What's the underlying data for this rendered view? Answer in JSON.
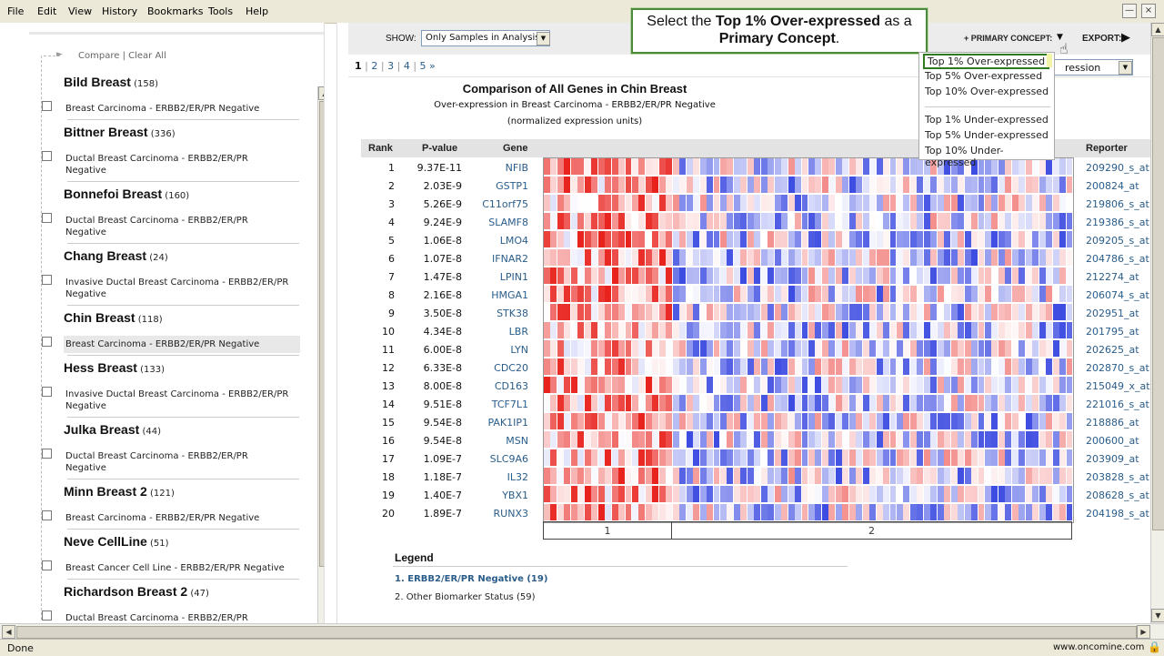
{
  "menu": [
    "File",
    "Edit",
    "View",
    "History",
    "Bookmarks",
    "Tools",
    "Help"
  ],
  "window_controls": [
    "—",
    "×"
  ],
  "left": {
    "compare": "Compare",
    "divider": "|",
    "clear_all": "Clear All",
    "datasets": [
      {
        "name": "Bild Breast",
        "count": "(158)",
        "desc": [
          "Breast Carcinoma - ERBB2/ER/PR Negative"
        ]
      },
      {
        "name": "Bittner Breast",
        "count": "(336)",
        "desc": [
          "Ductal Breast Carcinoma - ERBB2/ER/PR",
          "Negative"
        ]
      },
      {
        "name": "Bonnefoi Breast",
        "count": "(160)",
        "desc": [
          "Ductal Breast Carcinoma - ERBB2/ER/PR",
          "Negative"
        ]
      },
      {
        "name": "Chang Breast",
        "count": "(24)",
        "desc": [
          "Invasive Ductal Breast Carcinoma - ERBB2/ER/PR",
          "Negative"
        ]
      },
      {
        "name": "Chin Breast",
        "count": "(118)",
        "desc": [
          "Breast Carcinoma - ERBB2/ER/PR Negative"
        ]
      },
      {
        "name": "Hess Breast",
        "count": "(133)",
        "desc": [
          "Invasive Ductal Breast Carcinoma - ERBB2/ER/PR",
          "Negative"
        ]
      },
      {
        "name": "Julka Breast",
        "count": "(44)",
        "desc": [
          "Ductal Breast Carcinoma - ERBB2/ER/PR",
          "Negative"
        ]
      },
      {
        "name": "Minn Breast 2",
        "count": "(121)",
        "desc": [
          "Breast Carcinoma - ERBB2/ER/PR Negative"
        ]
      },
      {
        "name": "Neve CellLine",
        "count": "(51)",
        "desc": [
          "Breast Cancer Cell Line - ERBB2/ER/PR Negative"
        ]
      },
      {
        "name": "Richardson Breast 2",
        "count": "(47)",
        "desc": [
          "Ductal Breast Carcinoma - ERBB2/ER/PR"
        ]
      }
    ]
  },
  "toolbar": {
    "show_label": "SHOW:",
    "show_value": "Only Samples in Analysis",
    "primary_concept": "+ PRIMARY CONCEPT:",
    "export": "EXPORT:",
    "hidden_select_value": "ression"
  },
  "pagination": [
    "1",
    "2",
    "3",
    "4",
    "5 »"
  ],
  "pagination_sep": "|",
  "analysis": {
    "title": "Comparison of All Genes in Chin Breast",
    "subtitle": "Over-expression in Breast Carcinoma - ERBB2/ER/PR Negative",
    "units": "(normalized expression units)"
  },
  "table": {
    "headers": {
      "rank": "Rank",
      "pvalue": "P-value",
      "gene": "Gene",
      "reporter": "Reporter"
    },
    "rows": [
      {
        "rank": "1",
        "p": "9.37E-11",
        "gene": "NFIB",
        "reporter": "209290_s_at"
      },
      {
        "rank": "2",
        "p": "2.03E-9",
        "gene": "GSTP1",
        "reporter": "200824_at"
      },
      {
        "rank": "3",
        "p": "5.26E-9",
        "gene": "C11orf75",
        "reporter": "219806_s_at"
      },
      {
        "rank": "4",
        "p": "9.24E-9",
        "gene": "SLAMF8",
        "reporter": "219386_s_at"
      },
      {
        "rank": "5",
        "p": "1.06E-8",
        "gene": "LMO4",
        "reporter": "209205_s_at"
      },
      {
        "rank": "6",
        "p": "1.07E-8",
        "gene": "IFNAR2",
        "reporter": "204786_s_at"
      },
      {
        "rank": "7",
        "p": "1.47E-8",
        "gene": "LPIN1",
        "reporter": "212274_at"
      },
      {
        "rank": "8",
        "p": "2.16E-8",
        "gene": "HMGA1",
        "reporter": "206074_s_at"
      },
      {
        "rank": "9",
        "p": "3.50E-8",
        "gene": "STK38",
        "reporter": "202951_at"
      },
      {
        "rank": "10",
        "p": "4.34E-8",
        "gene": "LBR",
        "reporter": "201795_at"
      },
      {
        "rank": "11",
        "p": "6.00E-8",
        "gene": "LYN",
        "reporter": "202625_at"
      },
      {
        "rank": "12",
        "p": "6.33E-8",
        "gene": "CDC20",
        "reporter": "202870_s_at"
      },
      {
        "rank": "13",
        "p": "8.00E-8",
        "gene": "CD163",
        "reporter": "215049_x_at"
      },
      {
        "rank": "14",
        "p": "9.51E-8",
        "gene": "TCF7L1",
        "reporter": "221016_s_at"
      },
      {
        "rank": "15",
        "p": "9.54E-8",
        "gene": "PAK1IP1",
        "reporter": "218886_at"
      },
      {
        "rank": "16",
        "p": "9.54E-8",
        "gene": "MSN",
        "reporter": "200600_at"
      },
      {
        "rank": "17",
        "p": "1.09E-7",
        "gene": "SLC9A6",
        "reporter": "203909_at"
      },
      {
        "rank": "18",
        "p": "1.18E-7",
        "gene": "IL32",
        "reporter": "203828_s_at"
      },
      {
        "rank": "19",
        "p": "1.40E-7",
        "gene": "YBX1",
        "reporter": "208628_s_at"
      },
      {
        "rank": "20",
        "p": "1.89E-7",
        "gene": "RUNX3",
        "reporter": "204198_s_at"
      }
    ],
    "groups": [
      "1",
      "2"
    ],
    "group_sample_counts": [
      19,
      59
    ]
  },
  "legend": {
    "title": "Legend",
    "items": [
      "1. ERBB2/ER/PR Negative (19)",
      "2. Other Biomarker Status (59)"
    ]
  },
  "tooltip": {
    "pre": "Select the ",
    "bold1": "Top 1% Over-expressed",
    "mid": " as a",
    "bold2": "Primary Concept",
    "post": "."
  },
  "dropdown": {
    "options": [
      "Top 1% Over-expressed",
      "Top 5% Over-expressed",
      "Top 10% Over-expressed",
      "Top 1% Under-expressed",
      "Top 5% Under-expressed",
      "Top 10% Under-expressed"
    ],
    "selected": "Top 1% Over-expressed"
  },
  "status": {
    "left": "Done",
    "right": "www.oncomine.com"
  },
  "colors": {
    "over": "#e8231e",
    "under": "#2233dd",
    "link": "#2a5d8a",
    "tooltip_border": "#4a8a3a"
  }
}
